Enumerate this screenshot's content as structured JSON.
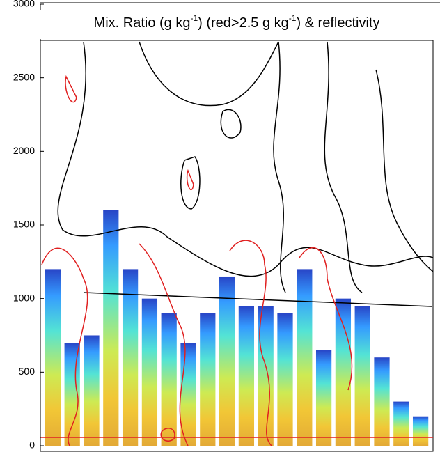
{
  "chart_data": {
    "type": "bar",
    "title_parts": [
      "Mix. Ratio (g kg",
      "-1",
      ") (red>2.5 g kg",
      "-1",
      ") & reflectivity"
    ],
    "categories": [
      null,
      null,
      null,
      null,
      null,
      null,
      null,
      null,
      null,
      null,
      null,
      null,
      null,
      null,
      null,
      null,
      null,
      null,
      null,
      null
    ],
    "values": [
      1200,
      700,
      750,
      1600,
      1200,
      1000,
      900,
      700,
      900,
      1150,
      950,
      950,
      900,
      1200,
      650,
      1000,
      950,
      600,
      300,
      200
    ],
    "ylim": [
      0,
      3000
    ],
    "yticks": [
      0,
      500,
      1000,
      1500,
      2000,
      2500,
      3000
    ]
  }
}
